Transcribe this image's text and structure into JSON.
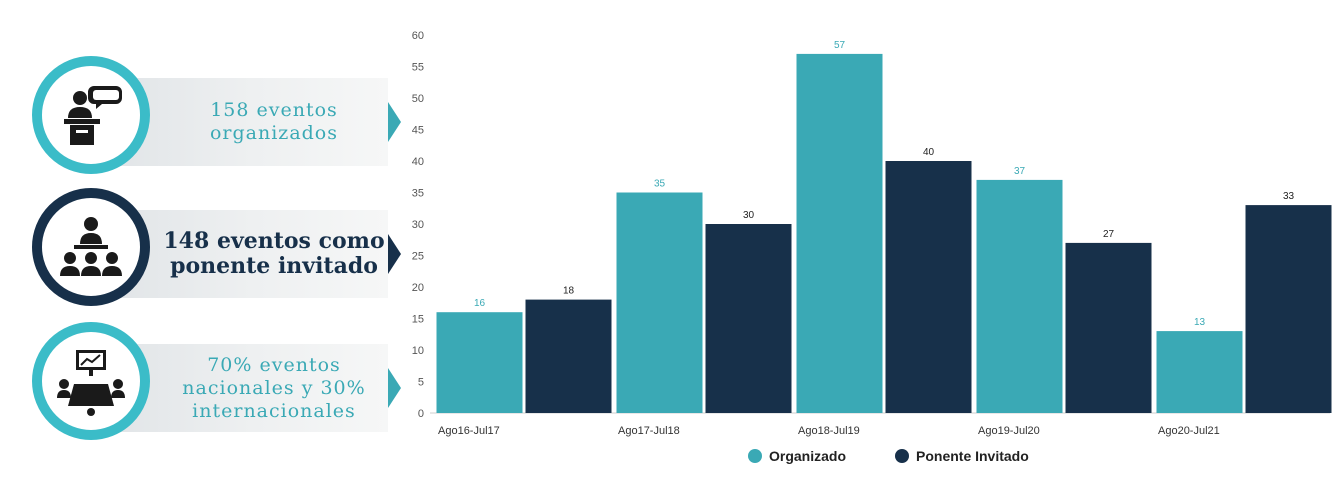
{
  "stats": [
    {
      "text": "158 eventos organizados",
      "icon": "speaker-podium-icon"
    },
    {
      "text": "148 eventos como ponente invitado",
      "icon": "presenter-audience-icon"
    },
    {
      "text": "70% eventos nacionales y 30% internacionales",
      "icon": "meeting-presentation-icon"
    }
  ],
  "colors": {
    "organizado": "#3aa9b5",
    "ponente": "#17304a",
    "ring_light": "#3bbcc8",
    "ring_dark": "#17304a"
  },
  "chart_data": {
    "type": "bar",
    "categories": [
      "Ago16-Jul17",
      "Ago17-Jul18",
      "Ago18-Jul19",
      "Ago19-Jul20",
      "Ago20-Jul21"
    ],
    "series": [
      {
        "name": "Organizado",
        "values": [
          16,
          35,
          57,
          37,
          13
        ]
      },
      {
        "name": "Ponente Invitado",
        "values": [
          18,
          30,
          40,
          27,
          33
        ]
      }
    ],
    "ylim": [
      0,
      60
    ],
    "yticks": [
      0,
      5,
      10,
      15,
      20,
      25,
      30,
      35,
      40,
      45,
      50,
      55,
      60
    ],
    "grid": false,
    "legend_position": "bottom-center"
  }
}
